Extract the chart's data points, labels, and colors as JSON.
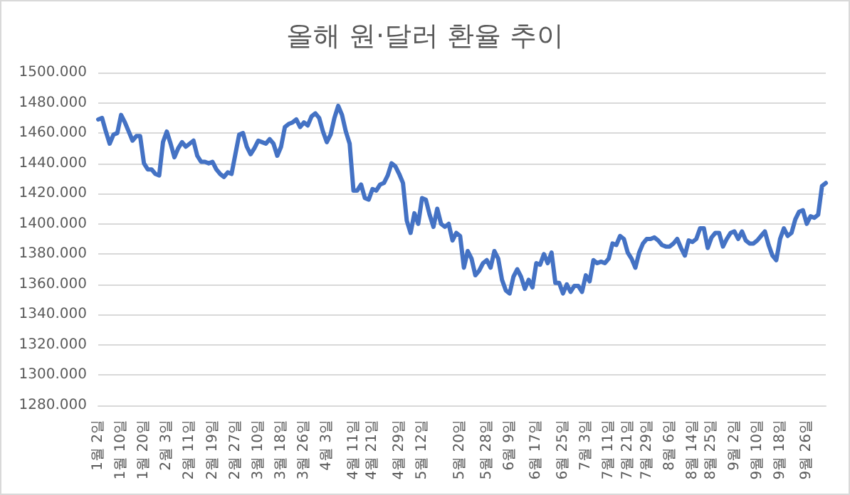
{
  "chart_data": {
    "type": "line",
    "title": "올해 원·달러 환율 추이",
    "categories": [
      "1월 2일",
      null,
      null,
      null,
      null,
      null,
      "1월 10일",
      null,
      null,
      null,
      null,
      null,
      "1월 20일",
      null,
      null,
      null,
      null,
      null,
      "2월 3일",
      null,
      null,
      null,
      null,
      null,
      "2월 11일",
      null,
      null,
      null,
      null,
      null,
      "2월 19일",
      null,
      null,
      null,
      null,
      null,
      "2월 27일",
      null,
      null,
      null,
      null,
      null,
      "3월 10일",
      null,
      null,
      null,
      null,
      null,
      "3월 18일",
      null,
      null,
      null,
      null,
      null,
      "3월 26일",
      null,
      null,
      null,
      null,
      null,
      "4월 3일",
      null,
      null,
      null,
      null,
      null,
      null,
      "4월 11일",
      null,
      null,
      null,
      null,
      "4월 21일",
      null,
      null,
      null,
      null,
      null,
      null,
      "4월 29일",
      null,
      null,
      null,
      null,
      null,
      "5월 12일",
      null,
      null,
      null,
      null,
      null,
      null,
      null,
      null,
      null,
      "5월 20일",
      null,
      null,
      null,
      null,
      null,
      null,
      "5월 28일",
      null,
      null,
      null,
      null,
      null,
      "6월 9일",
      null,
      null,
      null,
      null,
      null,
      null,
      "6월 17일",
      null,
      null,
      null,
      null,
      null,
      null,
      "6월 25일",
      null,
      null,
      null,
      null,
      null,
      "7월 3일",
      null,
      null,
      null,
      null,
      null,
      "7월 11일",
      null,
      null,
      null,
      null,
      "7월 21일",
      null,
      null,
      null,
      null,
      "7월 29일",
      null,
      null,
      null,
      null,
      null,
      "8월 6일",
      null,
      null,
      null,
      null,
      null,
      "8월 14일",
      null,
      null,
      null,
      null,
      "8월 25일",
      null,
      null,
      null,
      null,
      null,
      "9월 2일",
      null,
      null,
      null,
      null,
      null,
      "9월 10일",
      null,
      null,
      null,
      null,
      null,
      "9월 18일",
      null,
      null,
      null,
      null,
      null,
      null,
      "9월 26일",
      null,
      null,
      null,
      null,
      null
    ],
    "series": [
      {
        "color": "#4472c4",
        "values": [
          1469,
          1470,
          1461,
          1453,
          1459,
          1460,
          1472,
          1467,
          1461,
          1455,
          1458,
          1458,
          1440,
          1436,
          1436,
          1433,
          1432,
          1454,
          1461,
          1453,
          1444,
          1450,
          1454,
          1451,
          1453,
          1455,
          1445,
          1441,
          1441,
          1440,
          1441,
          1436,
          1433,
          1431,
          1434,
          1433,
          1446,
          1459,
          1460,
          1451,
          1446,
          1450,
          1455,
          1454,
          1453,
          1456,
          1453,
          1445,
          1451,
          1464,
          1466,
          1467,
          1469,
          1464,
          1467,
          1465,
          1471,
          1473,
          1470,
          1461,
          1454,
          1459,
          1470,
          1478,
          1472,
          1461,
          1453,
          1422,
          1422,
          1426,
          1417,
          1416,
          1423,
          1422,
          1426,
          1427,
          1432,
          1440,
          1438,
          1433,
          1427,
          1402,
          1394,
          1407,
          1400,
          1417,
          1416,
          1406,
          1398,
          1410,
          1400,
          1398,
          1400,
          1389,
          1394,
          1392,
          1371,
          1382,
          1377,
          1366,
          1369,
          1374,
          1376,
          1371,
          1382,
          1377,
          1363,
          1356,
          1354,
          1365,
          1370,
          1365,
          1357,
          1363,
          1358,
          1374,
          1373,
          1380,
          1374,
          1381,
          1361,
          1361,
          1354,
          1360,
          1355,
          1359,
          1359,
          1355,
          1366,
          1362,
          1376,
          1374,
          1375,
          1374,
          1377,
          1387,
          1386,
          1392,
          1390,
          1381,
          1377,
          1371,
          1381,
          1387,
          1390,
          1390,
          1391,
          1389,
          1386,
          1385,
          1385,
          1387,
          1390,
          1384,
          1379,
          1389,
          1388,
          1390,
          1397,
          1397,
          1384,
          1391,
          1394,
          1394,
          1385,
          1390,
          1394,
          1395,
          1390,
          1395,
          1389,
          1387,
          1387,
          1389,
          1392,
          1395,
          1386,
          1379,
          1376,
          1390,
          1397,
          1392,
          1394,
          1403,
          1408,
          1409,
          1400,
          1405,
          1404,
          1406,
          1425,
          1427
        ]
      }
    ],
    "ylim": [
      1280,
      1500
    ],
    "yticks": [
      {
        "value": 1280,
        "label": "1280.000"
      },
      {
        "value": 1300,
        "label": "1300.000"
      },
      {
        "value": 1320,
        "label": "1320.000"
      },
      {
        "value": 1340,
        "label": "1340.000"
      },
      {
        "value": 1360,
        "label": "1360.000"
      },
      {
        "value": 1380,
        "label": "1380.000"
      },
      {
        "value": 1400,
        "label": "1400.000"
      },
      {
        "value": 1420,
        "label": "1420.000"
      },
      {
        "value": 1440,
        "label": "1440.000"
      },
      {
        "value": 1460,
        "label": "1460.000"
      },
      {
        "value": 1480,
        "label": "1480.000"
      },
      {
        "value": 1500,
        "label": "1500.000"
      }
    ],
    "grid": "y",
    "marker": "none",
    "line_style": "solid"
  }
}
